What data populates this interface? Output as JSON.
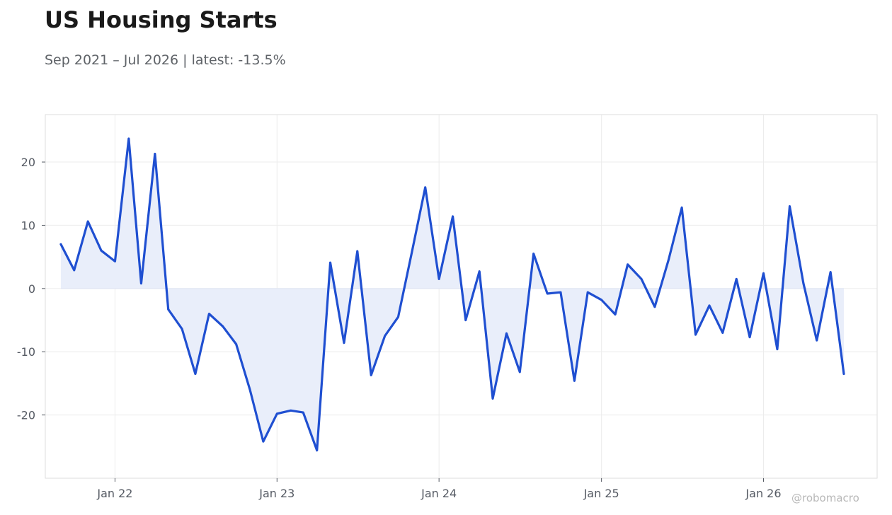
{
  "title": "US Housing Starts",
  "subtitle": "Sep 2021 – Jul 2026 | latest: -13.5%",
  "watermark": "@robomacro",
  "colors": {
    "line": "#1f4fd1",
    "fill": "#e9eefa",
    "grid": "#ececec",
    "frame": "#dedede",
    "zero_line": "#dde3f2"
  },
  "chart_data": {
    "type": "area",
    "title": "US Housing Starts",
    "subtitle": "Sep 2021 – Jul 2026 | latest: -13.5%",
    "xlabel": "",
    "ylabel": "",
    "grid": true,
    "legend": "none",
    "ylim": [
      -30,
      27.5
    ],
    "xlim": [
      "2021-07-28",
      "2026-09-14"
    ],
    "x_ticks": [
      {
        "date": "2022-01-01",
        "label": "Jan 22"
      },
      {
        "date": "2023-01-01",
        "label": "Jan 23"
      },
      {
        "date": "2024-01-01",
        "label": "Jan 24"
      },
      {
        "date": "2025-01-01",
        "label": "Jan 25"
      },
      {
        "date": "2026-01-01",
        "label": "Jan 26"
      }
    ],
    "y_ticks": [
      -20,
      -10,
      0,
      10,
      20
    ],
    "baseline": 0,
    "series": [
      {
        "x": [
          "2021-09",
          "2021-10",
          "2021-11",
          "2021-12",
          "2022-01",
          "2022-02",
          "2022-03",
          "2022-04",
          "2022-05",
          "2022-06",
          "2022-07",
          "2022-08",
          "2022-09",
          "2022-10",
          "2022-11",
          "2022-12",
          "2023-01",
          "2023-02",
          "2023-03",
          "2023-04",
          "2023-05",
          "2023-06",
          "2023-07",
          "2023-08",
          "2023-09",
          "2023-10",
          "2023-11",
          "2023-12",
          "2024-01",
          "2024-02",
          "2024-03",
          "2024-04",
          "2024-05",
          "2024-06",
          "2024-07",
          "2024-08",
          "2024-09",
          "2024-10",
          "2024-11",
          "2024-12",
          "2025-01",
          "2025-02",
          "2025-03",
          "2025-04",
          "2025-05",
          "2025-06",
          "2025-07",
          "2025-08",
          "2025-09",
          "2025-10",
          "2025-11",
          "2025-12",
          "2026-01",
          "2026-02",
          "2026-03",
          "2026-04",
          "2026-05",
          "2026-06",
          "2026-07"
        ],
        "values": [
          7.0,
          2.9,
          10.6,
          6.0,
          4.3,
          23.7,
          0.8,
          21.3,
          -3.3,
          -6.4,
          -13.5,
          -4.0,
          -6.0,
          -8.8,
          -16.0,
          -24.2,
          -19.8,
          -19.3,
          -19.6,
          -25.6,
          4.1,
          -8.6,
          5.9,
          -13.7,
          -7.5,
          -4.5,
          5.8,
          16.0,
          1.5,
          11.4,
          -5.0,
          2.7,
          -17.4,
          -7.1,
          -13.2,
          5.5,
          -0.8,
          -0.6,
          -14.6,
          -0.6,
          -1.8,
          -4.1,
          3.8,
          1.5,
          -2.9,
          4.5,
          12.8,
          -7.3,
          -2.7,
          -7.0,
          1.5,
          -7.7,
          2.4,
          -9.6,
          13.0,
          0.8,
          -8.2,
          2.6,
          -13.5
        ]
      }
    ]
  }
}
